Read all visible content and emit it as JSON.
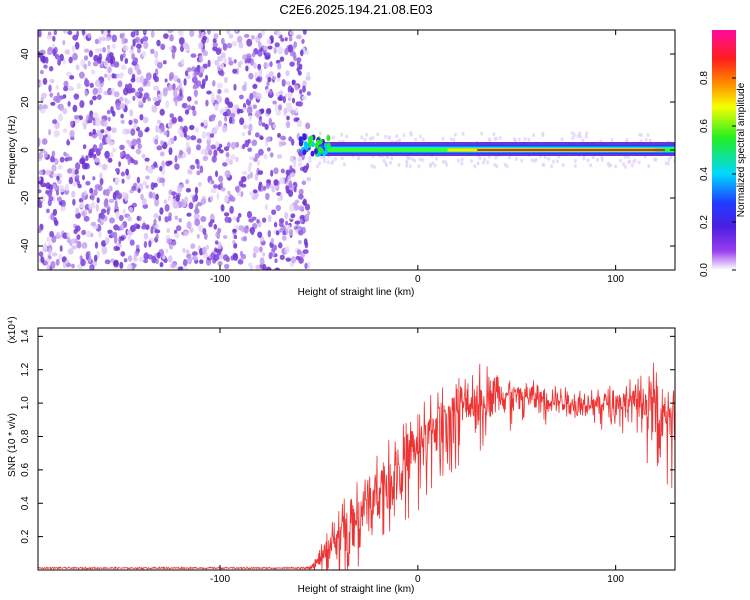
{
  "title": "C2E6.2025.194.21.08.E03",
  "chart_data": [
    {
      "type": "heatmap",
      "xlabel": "Height of straight line (km)",
      "ylabel": "Frequency (Hz)",
      "xlim": [
        -192,
        130
      ],
      "ylim": [
        -50,
        50
      ],
      "x_ticks": [
        -100,
        0,
        100
      ],
      "y_ticks": [
        -40,
        -20,
        0,
        20,
        40
      ],
      "colorbar": {
        "label": "Normalized spectral amplitude",
        "range": [
          0,
          1
        ],
        "ticks": [
          0,
          0.2,
          0.4,
          0.6,
          0.8
        ],
        "tick_labels": [
          "0.0",
          "0.2",
          "0.4",
          "0.6",
          "0.8"
        ]
      },
      "noise_region_x": [
        -192,
        -55
      ],
      "signal_region_x": [
        -55,
        130
      ],
      "signal_frequency_hz": 0
    },
    {
      "type": "line",
      "xlabel": "Height of straight line (km)",
      "ylabel": "SNR (10 * v/v)",
      "y_scale_label": "(x10⁴)",
      "xlim": [
        -192,
        130
      ],
      "ylim": [
        0,
        1.45
      ],
      "x_ticks": [
        -100,
        0,
        100
      ],
      "y_ticks": [
        0.2,
        0.4,
        0.6,
        0.8,
        1.0,
        1.2,
        1.4
      ],
      "y_tick_labels": [
        "0.2",
        "0.4",
        "0.6",
        "0.8",
        "1.0",
        "1.2",
        "1.4"
      ],
      "color": "#ee3333",
      "envelope": {
        "x": [
          -192,
          -56,
          -50,
          -40,
          -30,
          -20,
          -10,
          0,
          10,
          20,
          30,
          35,
          50,
          70,
          90,
          110,
          120,
          130
        ],
        "mean": [
          0.012,
          0.012,
          0.05,
          0.22,
          0.35,
          0.5,
          0.62,
          0.75,
          0.9,
          0.98,
          1.02,
          1.08,
          1.05,
          1.02,
          1.0,
          1.02,
          1.0,
          0.95
        ],
        "spread": [
          0.004,
          0.004,
          0.05,
          0.12,
          0.14,
          0.15,
          0.16,
          0.16,
          0.15,
          0.15,
          0.16,
          0.12,
          0.08,
          0.06,
          0.06,
          0.1,
          0.18,
          0.22
        ]
      }
    }
  ]
}
